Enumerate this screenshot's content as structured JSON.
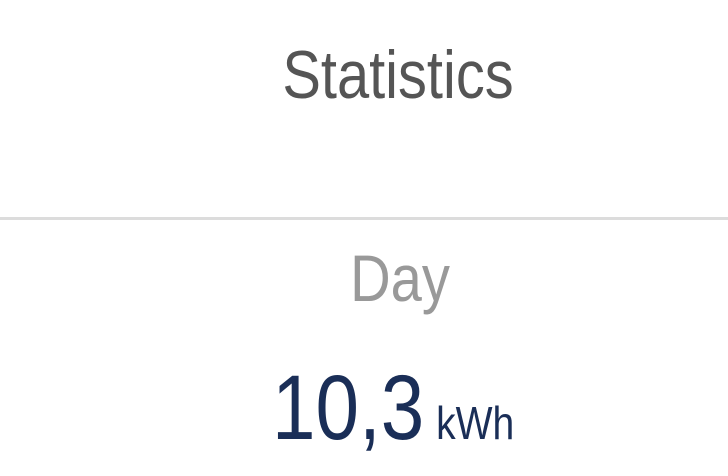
{
  "header": {
    "title": "Statistics"
  },
  "stat": {
    "period": "Day",
    "value": "10,3",
    "unit": "kWh"
  },
  "colors": {
    "value": "#1a2e57",
    "title": "#555555",
    "label": "#999999"
  }
}
